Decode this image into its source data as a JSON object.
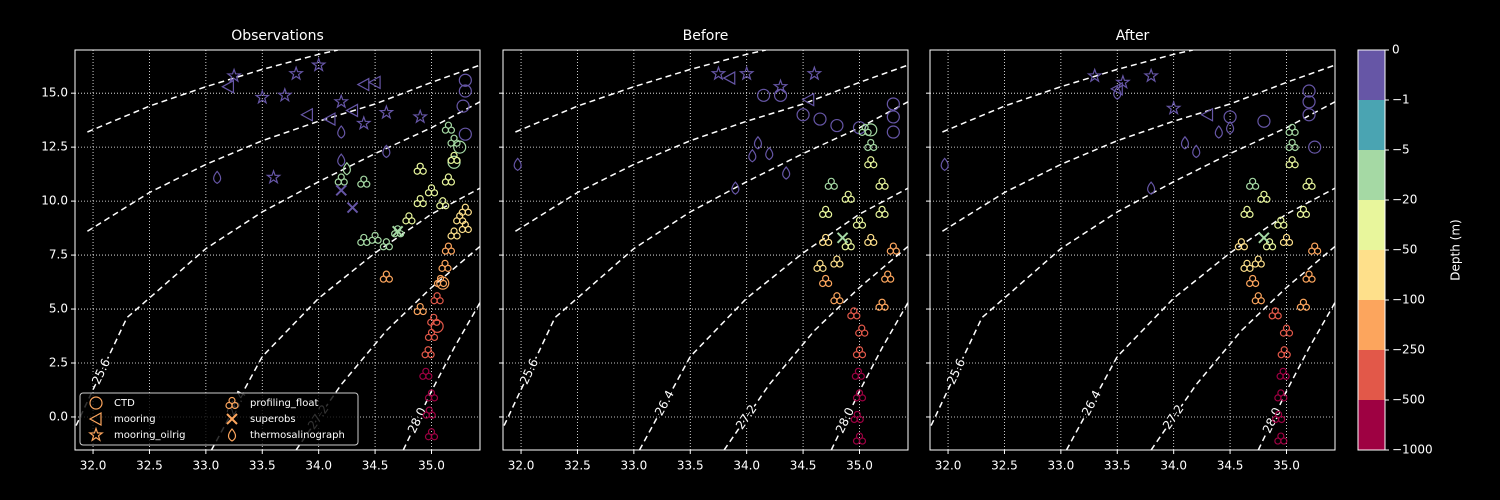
{
  "chart_data": [
    {
      "type": "scatter",
      "title": "Observations",
      "xlim": [
        31.84,
        35.43
      ],
      "ylim": [
        -1.53,
        17.0
      ],
      "xticks": [
        {
          "value": 32,
          "label": "32.0"
        },
        32.5,
        {
          "value": 33,
          "label": "33.0"
        },
        33.5,
        {
          "value": 34,
          "label": "34.0"
        },
        34.5,
        {
          "value": 35,
          "label": "35.0"
        }
      ],
      "yticks": [
        {
          "value": 0,
          "label": "0.0"
        },
        2.5,
        {
          "value": 5,
          "label": "5.0"
        },
        7.5,
        {
          "value": 10,
          "label": "10.0"
        },
        12.5,
        {
          "value": 15,
          "label": "15.0"
        }
      ],
      "show_yticklabels": true,
      "grid": true,
      "legend": "lower left",
      "series": [
        {
          "name": "CTD",
          "marker": "circle",
          "color": "#fca55d",
          "x": [
            35.3,
            35.3,
            35.28,
            35.3,
            35.25,
            35.2,
            35.1,
            35.05
          ],
          "y": [
            15.6,
            15.1,
            14.4,
            13.1,
            12.5,
            11.8,
            6.2,
            4.2
          ],
          "depth": [
            -0.5,
            -0.5,
            -0.5,
            -0.5,
            -10,
            -15,
            -250,
            -400
          ]
        },
        {
          "name": "mooring",
          "marker": "triangle-left",
          "color": "#fca55d",
          "x": [
            33.2,
            34.3,
            34.5,
            34.1,
            33.9,
            34.4
          ],
          "y": [
            15.3,
            14.2,
            15.5,
            13.8,
            14.0,
            15.4
          ],
          "depth": [
            -0.5,
            -0.5,
            -0.5,
            -0.5,
            -0.5,
            -0.5
          ]
        },
        {
          "name": "mooring_oilrig",
          "marker": "star",
          "color": "#fca55d",
          "x": [
            33.25,
            33.5,
            33.8,
            34.0,
            34.2,
            34.4,
            34.9,
            33.6,
            34.6,
            33.7
          ],
          "y": [
            15.8,
            14.8,
            15.9,
            16.3,
            14.6,
            13.6,
            13.9,
            11.1,
            14.1,
            14.9
          ],
          "depth": [
            -0.5,
            -0.5,
            -0.5,
            -0.5,
            -0.5,
            -0.5,
            -0.5,
            -0.5,
            -0.5,
            -0.5
          ]
        },
        {
          "name": "profiling_float",
          "marker": "clover",
          "color": "#fca55d",
          "x": [
            35.0,
            34.98,
            35.0,
            34.95,
            34.97,
            35.0,
            35.02,
            35.05,
            35.08,
            35.12,
            35.15,
            35.2,
            35.25,
            35.3,
            35.1,
            35.0,
            34.9,
            34.8,
            34.7,
            34.6,
            34.5,
            34.4,
            35.15,
            35.2,
            35.2,
            35.15,
            34.9,
            34.2,
            34.4,
            34.6,
            34.9,
            35.3
          ],
          "y": [
            -0.8,
            0.2,
            1.0,
            2.0,
            3.0,
            3.8,
            4.5,
            5.5,
            6.3,
            7.0,
            7.8,
            8.5,
            9.2,
            9.6,
            9.9,
            10.5,
            10.0,
            9.2,
            8.6,
            8.0,
            8.3,
            8.2,
            11.0,
            12.0,
            12.8,
            13.4,
            11.5,
            11.0,
            10.9,
            6.5,
            5.0,
            8.8
          ],
          "depth": [
            -900,
            -800,
            -700,
            -600,
            -450,
            -400,
            -300,
            -280,
            -200,
            -150,
            -120,
            -90,
            -70,
            -60,
            -40,
            -30,
            -30,
            -25,
            -15,
            -10,
            -8,
            -10,
            -30,
            -25,
            -10,
            -8,
            -40,
            -8,
            -8,
            -130,
            -250,
            -60
          ]
        },
        {
          "name": "superobs",
          "marker": "x",
          "color": "#fca55d",
          "x": [
            34.3,
            34.2,
            34.7
          ],
          "y": [
            9.7,
            10.5,
            8.6
          ],
          "depth": [
            -0.5,
            -0.5,
            -10
          ]
        },
        {
          "name": "thermosalinograph",
          "marker": "drop",
          "color": "#fca55d",
          "x": [
            33.1,
            34.2,
            34.6,
            34.2,
            34.25
          ],
          "y": [
            11.1,
            13.2,
            12.3,
            11.9,
            11.5
          ],
          "depth": [
            -0.5,
            -0.5,
            -0.5,
            -0.5,
            -10
          ]
        }
      ]
    },
    {
      "type": "scatter",
      "title": "Before",
      "xlim": [
        31.84,
        35.43
      ],
      "ylim": [
        -1.53,
        17.0
      ],
      "xticks": [
        {
          "value": 32,
          "label": "32.0"
        },
        32.5,
        {
          "value": 33,
          "label": "33.0"
        },
        33.5,
        {
          "value": 34,
          "label": "34.0"
        },
        34.5,
        {
          "value": 35,
          "label": "35.0"
        }
      ],
      "yticks": [
        {
          "value": 0,
          "label": "0.0"
        },
        2.5,
        {
          "value": 5,
          "label": "5.0"
        },
        7.5,
        {
          "value": 10,
          "label": "10.0"
        },
        12.5,
        {
          "value": 15,
          "label": "15.0"
        }
      ],
      "show_yticklabels": false,
      "grid": true,
      "series": [
        {
          "name": "CTD",
          "marker": "circle",
          "color": "#fca55d",
          "x": [
            35.3,
            35.3,
            35.3,
            34.3,
            34.15,
            34.5,
            34.65,
            34.8,
            35.0,
            35.1
          ],
          "y": [
            14.5,
            13.9,
            13.2,
            14.9,
            14.9,
            14.0,
            13.8,
            13.5,
            13.4,
            13.3
          ],
          "depth": [
            -0.5,
            -0.5,
            -0.5,
            -0.5,
            -0.5,
            -0.5,
            -0.5,
            -0.5,
            -0.5,
            -10
          ]
        },
        {
          "name": "mooring",
          "marker": "triangle-left",
          "color": "#fca55d",
          "x": [
            33.85,
            34.55
          ],
          "y": [
            15.7,
            14.7
          ],
          "depth": [
            -0.5,
            -0.5
          ]
        },
        {
          "name": "mooring_oilrig",
          "marker": "star",
          "color": "#fca55d",
          "x": [
            33.75,
            34.0,
            34.3,
            34.6
          ],
          "y": [
            15.9,
            15.9,
            15.3,
            15.9
          ],
          "depth": [
            -0.5,
            -0.5,
            -0.5,
            -0.5
          ]
        },
        {
          "name": "profiling_float",
          "marker": "clover",
          "color": "#fca55d",
          "x": [
            35.0,
            34.98,
            35.0,
            34.99,
            35.0,
            35.02,
            34.95,
            34.8,
            34.7,
            34.65,
            35.2,
            35.25,
            35.3,
            34.7,
            34.7,
            34.75,
            34.9,
            35.2,
            35.2,
            35.1,
            35.1,
            35.05,
            35.0,
            34.9,
            34.8,
            35.1
          ],
          "y": [
            -1.0,
            0.0,
            1.0,
            2.0,
            3.0,
            4.0,
            4.8,
            5.5,
            6.3,
            7.0,
            5.2,
            6.5,
            7.8,
            8.2,
            9.5,
            10.8,
            8.0,
            9.5,
            10.8,
            11.8,
            12.6,
            13.3,
            9.0,
            10.2,
            7.2,
            8.2
          ],
          "depth": [
            -900,
            -800,
            -650,
            -550,
            -450,
            -300,
            -280,
            -200,
            -150,
            -100,
            -220,
            -160,
            -110,
            -60,
            -40,
            -15,
            -40,
            -50,
            -30,
            -25,
            -20,
            -10,
            -40,
            -30,
            -70,
            -80
          ]
        },
        {
          "name": "superobs",
          "marker": "x",
          "color": "#fca55d",
          "x": [
            34.85
          ],
          "y": [
            8.3
          ],
          "depth": [
            -10
          ]
        },
        {
          "name": "thermosalinograph",
          "marker": "drop",
          "color": "#fca55d",
          "x": [
            31.97,
            34.1,
            34.35,
            34.2,
            34.05,
            33.9
          ],
          "y": [
            11.7,
            12.7,
            11.3,
            12.2,
            12.1,
            10.6
          ],
          "depth": [
            -0.5,
            -0.5,
            -0.5,
            -0.5,
            -0.5,
            -0.5
          ]
        }
      ]
    },
    {
      "type": "scatter",
      "title": "After",
      "xlim": [
        31.84,
        35.43
      ],
      "ylim": [
        -1.53,
        17.0
      ],
      "xticks": [
        {
          "value": 32,
          "label": "32.0"
        },
        32.5,
        {
          "value": 33,
          "label": "33.0"
        },
        33.5,
        {
          "value": 34,
          "label": "34.0"
        },
        34.5,
        {
          "value": 35,
          "label": "35.0"
        }
      ],
      "yticks": [
        {
          "value": 0,
          "label": "0.0"
        },
        2.5,
        {
          "value": 5,
          "label": "5.0"
        },
        7.5,
        {
          "value": 10,
          "label": "10.0"
        },
        12.5,
        {
          "value": 15,
          "label": "15.0"
        }
      ],
      "show_yticklabels": false,
      "grid": true,
      "series": [
        {
          "name": "CTD",
          "marker": "circle",
          "color": "#fca55d",
          "x": [
            35.2,
            35.2,
            35.2,
            34.5,
            34.8,
            35.25
          ],
          "y": [
            15.1,
            14.6,
            14.0,
            13.9,
            13.7,
            12.5
          ],
          "depth": [
            -0.5,
            -0.5,
            -0.5,
            -0.5,
            -0.5,
            -0.5
          ]
        },
        {
          "name": "mooring",
          "marker": "triangle-left",
          "color": "#fca55d",
          "x": [
            33.5,
            34.3
          ],
          "y": [
            15.2,
            14.0
          ],
          "depth": [
            -0.5,
            -0.5
          ]
        },
        {
          "name": "mooring_oilrig",
          "marker": "star",
          "color": "#fca55d",
          "x": [
            33.3,
            33.55,
            33.8,
            34.0
          ],
          "y": [
            15.8,
            15.5,
            15.8,
            14.3
          ],
          "depth": [
            -0.5,
            -0.5,
            -0.5,
            -0.5
          ]
        },
        {
          "name": "profiling_float",
          "marker": "clover",
          "color": "#fca55d",
          "x": [
            34.95,
            34.93,
            34.95,
            34.97,
            34.98,
            35.0,
            34.9,
            34.75,
            34.7,
            34.65,
            35.15,
            35.2,
            35.25,
            34.6,
            34.65,
            34.7,
            34.85,
            35.15,
            35.2,
            35.05,
            35.05,
            35.05,
            34.95,
            34.8,
            34.75,
            35.0
          ],
          "y": [
            -1.0,
            0.0,
            1.0,
            2.0,
            3.0,
            4.0,
            4.8,
            5.5,
            6.3,
            7.0,
            5.2,
            6.5,
            7.8,
            8.0,
            9.5,
            10.8,
            8.0,
            9.5,
            10.8,
            11.8,
            12.6,
            13.3,
            9.0,
            10.2,
            7.2,
            8.2
          ],
          "depth": [
            -900,
            -800,
            -650,
            -550,
            -450,
            -300,
            -280,
            -200,
            -150,
            -100,
            -220,
            -160,
            -110,
            -60,
            -40,
            -15,
            -40,
            -50,
            -30,
            -25,
            -20,
            -10,
            -40,
            -30,
            -70,
            -80
          ]
        },
        {
          "name": "superobs",
          "marker": "x",
          "color": "#fca55d",
          "x": [
            34.8
          ],
          "y": [
            8.3
          ],
          "depth": [
            -10
          ]
        },
        {
          "name": "thermosalinograph",
          "marker": "drop",
          "color": "#fca55d",
          "x": [
            31.97,
            33.5,
            34.1,
            34.2,
            34.4,
            34.5,
            33.8
          ],
          "y": [
            11.7,
            15.0,
            12.7,
            12.3,
            13.2,
            13.4,
            10.6
          ],
          "depth": [
            -0.5,
            -0.5,
            -0.5,
            -0.5,
            -0.5,
            -0.5,
            -0.5
          ]
        }
      ]
    }
  ],
  "contours": [
    {
      "x": [
        31.95,
        32.5,
        33.0,
        33.5,
        34.0,
        34.17
      ],
      "y": [
        13.2,
        14.4,
        15.3,
        16.1,
        16.8,
        17.0
      ]
    },
    {
      "x": [
        31.95,
        32.5,
        33.0,
        33.5,
        34.0,
        34.5,
        35.0,
        35.43
      ],
      "y": [
        8.6,
        10.4,
        11.7,
        12.8,
        13.7,
        14.5,
        15.5,
        16.3
      ]
    },
    {
      "label": "25.6",
      "x": [
        31.85,
        32.3,
        33.0,
        33.5,
        34.0,
        34.5,
        35.0,
        35.43
      ],
      "y": [
        -0.4,
        4.6,
        7.8,
        9.5,
        10.9,
        12.2,
        13.4,
        14.6
      ]
    },
    {
      "label": "26.4",
      "x": [
        33.05,
        33.5,
        34.0,
        34.5,
        35.0,
        35.43
      ],
      "y": [
        -1.53,
        2.8,
        5.5,
        7.6,
        9.4,
        10.6
      ]
    },
    {
      "label": "27.2",
      "x": [
        33.8,
        34.2,
        34.6,
        35.0,
        35.43
      ],
      "y": [
        -1.53,
        1.5,
        4.0,
        6.0,
        7.9
      ]
    },
    {
      "label": "28.0",
      "x": [
        34.75,
        35.0,
        35.2,
        35.43
      ],
      "y": [
        -1.53,
        1.2,
        3.2,
        5.3
      ]
    }
  ],
  "colorbar": {
    "label": "Depth (m)",
    "ticks": [
      0,
      {
        "value": -1,
        "label": "−1"
      },
      {
        "value": -5,
        "label": "−5"
      },
      {
        "value": -20,
        "label": "−20"
      },
      {
        "value": -50,
        "label": "−50"
      },
      {
        "value": -100,
        "label": "−100"
      },
      {
        "value": -250,
        "label": "−250"
      },
      {
        "value": -500,
        "label": "−500"
      },
      {
        "value": -1000,
        "label": "−1000"
      }
    ],
    "colors": [
      "#6656a6",
      "#4aa4b2",
      "#a5d9a4",
      "#e8f69c",
      "#fee08b",
      "#fca55d",
      "#e25849",
      "#9e0142"
    ]
  }
}
